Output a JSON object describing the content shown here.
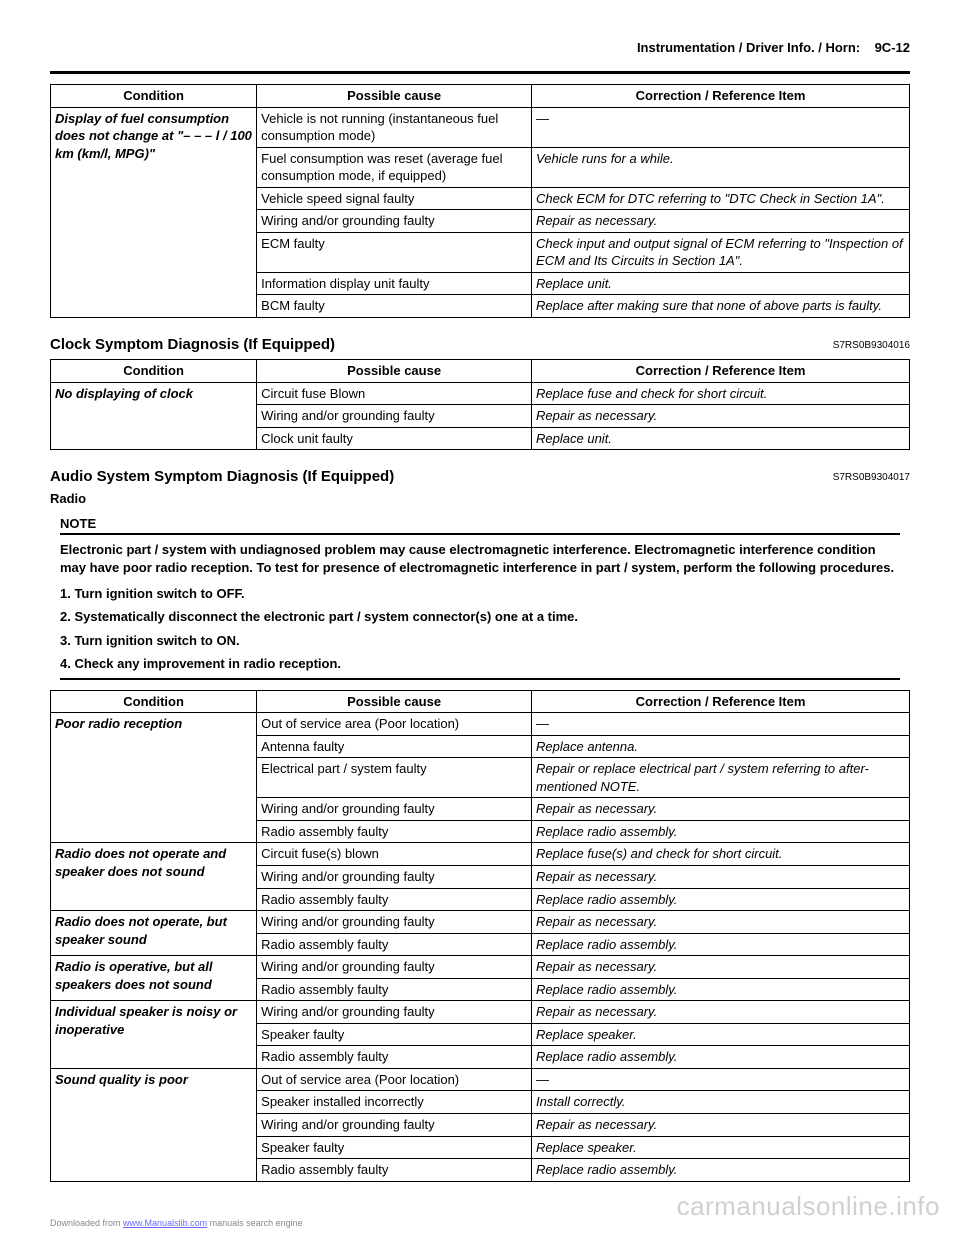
{
  "header": {
    "title": "Instrumentation / Driver Info. / Horn:",
    "page": "9C-12"
  },
  "table1": {
    "headers": [
      "Condition",
      "Possible cause",
      "Correction / Reference Item"
    ],
    "condition": "Display of fuel consumption does not change at \"– – – l / 100 km (km/l, MPG)\"",
    "rows": [
      {
        "cause": "Vehicle is not running (instantaneous fuel consumption mode)",
        "corr": "—"
      },
      {
        "cause": "Fuel consumption was reset (average fuel consumption mode, if equipped)",
        "corr": "Vehicle runs for a while."
      },
      {
        "cause": "Vehicle speed signal faulty",
        "corr": "Check ECM for DTC referring to \"DTC Check in Section 1A\"."
      },
      {
        "cause": "Wiring and/or grounding faulty",
        "corr": "Repair as necessary."
      },
      {
        "cause": "ECM faulty",
        "corr": "Check input and output signal of ECM referring to \"Inspection of ECM and Its Circuits in Section 1A\"."
      },
      {
        "cause": "Information display unit faulty",
        "corr": "Replace unit."
      },
      {
        "cause": "BCM faulty",
        "corr": "Replace after making sure that none of above parts is faulty."
      }
    ]
  },
  "section_clock": {
    "title": "Clock Symptom Diagnosis (If Equipped)",
    "ref": "S7RS0B9304016"
  },
  "table2": {
    "headers": [
      "Condition",
      "Possible cause",
      "Correction / Reference Item"
    ],
    "condition": "No displaying of clock",
    "rows": [
      {
        "cause": "Circuit fuse Blown",
        "corr": "Replace fuse and check for short circuit."
      },
      {
        "cause": "Wiring and/or grounding faulty",
        "corr": "Repair as necessary."
      },
      {
        "cause": "Clock unit faulty",
        "corr": "Replace unit."
      }
    ]
  },
  "section_audio": {
    "title": "Audio System Symptom Diagnosis (If Equipped)",
    "ref": "S7RS0B9304017",
    "sub": "Radio"
  },
  "note": {
    "label": "NOTE",
    "text": "Electronic part / system with undiagnosed problem may cause electromagnetic interference. Electromagnetic interference condition may have poor radio reception. To test for presence of electromagnetic interference in part / system, perform the following procedures.",
    "steps": [
      "1.   Turn ignition switch to OFF.",
      "2.   Systematically disconnect the electronic part / system connector(s) one at a time.",
      "3.   Turn ignition switch to ON.",
      "4.   Check any improvement in radio reception."
    ]
  },
  "table3": {
    "headers": [
      "Condition",
      "Possible cause",
      "Correction / Reference Item"
    ],
    "groups": [
      {
        "condition": "Poor radio reception",
        "rows": [
          {
            "cause": "Out of service area (Poor location)",
            "corr": "—"
          },
          {
            "cause": "Antenna faulty",
            "corr": "Replace antenna."
          },
          {
            "cause": "Electrical part / system faulty",
            "corr": "Repair or replace electrical part / system referring to after-mentioned NOTE."
          },
          {
            "cause": "Wiring and/or grounding faulty",
            "corr": "Repair as necessary."
          },
          {
            "cause": "Radio assembly faulty",
            "corr": "Replace radio assembly."
          }
        ]
      },
      {
        "condition": "Radio does not operate and speaker does not sound",
        "rows": [
          {
            "cause": "Circuit fuse(s) blown",
            "corr": "Replace fuse(s) and check for short circuit."
          },
          {
            "cause": "Wiring and/or grounding faulty",
            "corr": "Repair as necessary."
          },
          {
            "cause": "Radio assembly faulty",
            "corr": "Replace radio assembly."
          }
        ]
      },
      {
        "condition": "Radio does not operate, but speaker sound",
        "rows": [
          {
            "cause": "Wiring and/or grounding faulty",
            "corr": "Repair as necessary."
          },
          {
            "cause": "Radio assembly faulty",
            "corr": "Replace radio assembly."
          }
        ]
      },
      {
        "condition": "Radio is operative, but all speakers does not sound",
        "rows": [
          {
            "cause": "Wiring and/or grounding faulty",
            "corr": "Repair as necessary."
          },
          {
            "cause": "Radio assembly faulty",
            "corr": "Replace radio assembly."
          }
        ]
      },
      {
        "condition": "Individual speaker is noisy or inoperative",
        "rows": [
          {
            "cause": "Wiring and/or grounding faulty",
            "corr": "Repair as necessary."
          },
          {
            "cause": "Speaker faulty",
            "corr": "Replace speaker."
          },
          {
            "cause": "Radio assembly faulty",
            "corr": "Replace radio assembly."
          }
        ]
      },
      {
        "condition": "Sound quality is poor",
        "rows": [
          {
            "cause": "Out of service area (Poor location)",
            "corr": "—"
          },
          {
            "cause": "Speaker installed incorrectly",
            "corr": "Install correctly."
          },
          {
            "cause": "Wiring and/or grounding faulty",
            "corr": "Repair as necessary."
          },
          {
            "cause": "Speaker faulty",
            "corr": "Replace speaker."
          },
          {
            "cause": "Radio assembly faulty",
            "corr": "Replace radio assembly."
          }
        ]
      }
    ]
  },
  "footer": {
    "prefix": "Downloaded from ",
    "link": "www.Manualslib.com",
    "suffix": " manuals search engine"
  },
  "watermark": "carmanualsonline.info"
}
